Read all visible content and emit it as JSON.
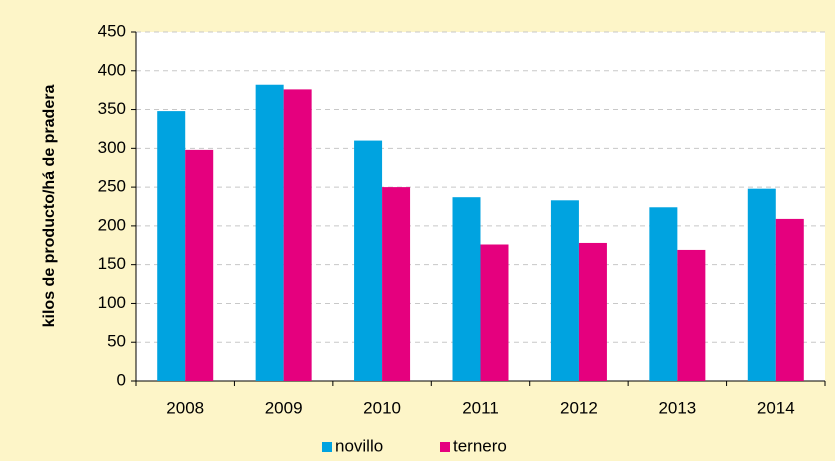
{
  "chart_data": {
    "type": "bar",
    "y_label": "kilos de producto/há de pradera",
    "categories": [
      "2008",
      "2009",
      "2010",
      "2011",
      "2012",
      "2013",
      "2014"
    ],
    "series": [
      {
        "name": "novillo",
        "color": "#00a3e0",
        "values": [
          348,
          382,
          310,
          237,
          233,
          224,
          248
        ]
      },
      {
        "name": "ternero",
        "color": "#e5007e",
        "values": [
          298,
          376,
          250,
          176,
          178,
          169,
          209
        ]
      }
    ],
    "ylim": [
      0,
      450
    ],
    "yticks": [
      0,
      50,
      100,
      150,
      200,
      250,
      300,
      350,
      400,
      450
    ],
    "grid": true,
    "legend": "bottom"
  }
}
